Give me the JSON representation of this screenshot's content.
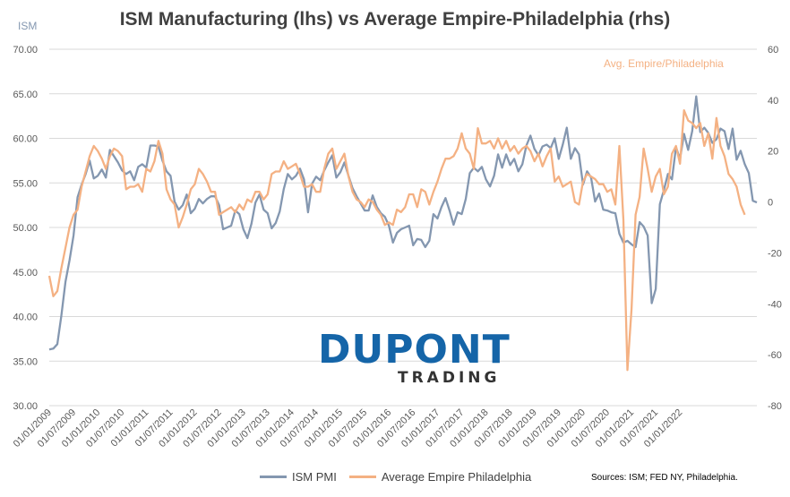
{
  "chart_data": {
    "type": "line",
    "title": "ISM Manufacturing (lhs) vs Average Empire-Philadelphia (rhs)",
    "left_axis_label": "ISM",
    "right_axis_label": "Avg. Empire/Philadelphia",
    "left_ylim": [
      30,
      70
    ],
    "right_ylim": [
      -80,
      60
    ],
    "left_ticks": [
      "30.00",
      "35.00",
      "40.00",
      "45.00",
      "50.00",
      "55.00",
      "60.00",
      "65.00",
      "70.00"
    ],
    "right_ticks": [
      "-80",
      "-60",
      "-40",
      "-20",
      "0",
      "20",
      "40",
      "60"
    ],
    "x_ticks": [
      "01/01/2009",
      "01/07/2009",
      "01/01/2010",
      "01/07/2010",
      "01/01/2011",
      "01/07/2011",
      "01/01/2012",
      "01/07/2012",
      "01/01/2013",
      "01/07/2013",
      "01/01/2014",
      "01/07/2014",
      "01/01/2015",
      "01/07/2015",
      "01/01/2016",
      "01/07/2016",
      "01/01/2017",
      "01/07/2017",
      "01/01/2018",
      "01/07/2018",
      "01/01/2019",
      "01/07/2019",
      "01/01/2020",
      "01/07/2020",
      "01/01/2021",
      "01/07/2021",
      "01/01/2022"
    ],
    "x_start": "2009-01",
    "x_end": "2022-08",
    "series": [
      {
        "name": "ISM PMI",
        "axis": "left",
        "color": "#8497b0",
        "values": [
          36.3,
          36.4,
          36.9,
          40.1,
          43.9,
          46.3,
          49.1,
          53.4,
          54.8,
          56.0,
          57.5,
          55.5,
          55.8,
          56.5,
          55.6,
          58.7,
          58.0,
          57.3,
          56.4,
          56.0,
          56.3,
          55.3,
          56.8,
          57.1,
          56.7,
          59.2,
          59.2,
          59.1,
          57.5,
          56.3,
          55.8,
          52.9,
          52.0,
          52.5,
          53.7,
          51.6,
          52.1,
          53.2,
          52.7,
          53.2,
          53.5,
          53.5,
          52.5,
          49.8,
          50.0,
          50.2,
          51.9,
          51.5,
          49.8,
          48.8,
          50.4,
          52.8,
          53.7,
          52.0,
          51.6,
          49.9,
          50.5,
          51.8,
          54.3,
          56.0,
          55.4,
          55.8,
          56.6,
          55.4,
          51.7,
          54.9,
          55.7,
          55.3,
          56.4,
          57.3,
          58.1,
          55.6,
          56.2,
          57.3,
          55.8,
          54.4,
          53.5,
          52.7,
          51.9,
          51.9,
          53.6,
          52.3,
          51.6,
          51.2,
          50.2,
          48.3,
          49.4,
          49.8,
          50.0,
          50.2,
          48.0,
          48.7,
          48.6,
          47.8,
          48.5,
          51.5,
          51.0,
          52.3,
          53.3,
          51.9,
          50.3,
          51.7,
          51.5,
          53.2,
          56.1,
          56.7,
          56.3,
          56.8,
          55.4,
          54.6,
          55.8,
          58.2,
          56.7,
          58.2,
          57.0,
          57.7,
          56.3,
          57.1,
          59.2,
          60.3,
          58.8,
          58.1,
          59.1,
          59.3,
          58.9,
          60.0,
          57.7,
          59.3,
          61.2,
          57.7,
          58.9,
          58.2,
          54.8,
          56.3,
          55.6,
          52.9,
          53.8,
          52.0,
          51.9,
          51.7,
          51.6,
          49.3,
          48.3,
          48.5,
          48.1,
          47.8,
          50.6,
          50.1,
          49.1,
          41.5,
          43.1,
          52.6,
          54.2,
          56.0,
          55.4,
          59.0,
          57.7,
          60.5,
          58.7,
          60.8,
          64.7,
          60.7,
          61.2,
          60.6,
          59.5,
          59.9,
          61.1,
          60.8,
          58.8,
          61.1,
          57.6,
          58.6,
          57.1,
          56.1,
          53.0,
          52.8
        ]
      },
      {
        "name": "Average Empire Philadelphia",
        "axis": "right",
        "color": "#f4b183",
        "values": [
          -29,
          -37,
          -35,
          -26,
          -18,
          -10,
          -5,
          -3,
          6,
          12,
          18,
          22,
          20,
          17,
          13,
          18,
          21,
          20,
          18,
          5,
          6,
          6,
          7,
          4,
          13,
          12,
          16,
          24,
          19,
          5,
          1,
          -1,
          -10,
          -6,
          -1,
          5,
          7,
          13,
          11,
          8,
          4,
          4,
          -5,
          -4,
          -3,
          -2,
          -4,
          -1,
          -3,
          1,
          0,
          4,
          4,
          1,
          3,
          11,
          12,
          12,
          16,
          13,
          14,
          15,
          11,
          6,
          6,
          7,
          4,
          4,
          13,
          19,
          21,
          13,
          16,
          19,
          10,
          4,
          1,
          0,
          -2,
          1,
          0,
          -3,
          -5,
          -9,
          -8,
          -9,
          -3,
          -4,
          -2,
          3,
          3,
          -2,
          5,
          4,
          -1,
          4,
          8,
          13,
          17,
          17,
          18,
          21,
          27,
          21,
          19,
          13,
          29,
          23,
          23,
          24,
          21,
          25,
          21,
          24,
          20,
          22,
          19,
          21,
          22,
          20,
          16,
          19,
          14,
          18,
          21,
          8,
          10,
          6,
          7,
          8,
          0,
          -1,
          8,
          11,
          10,
          9,
          7,
          7,
          4,
          5,
          -1,
          22,
          -7,
          -66,
          -42,
          -5,
          2,
          21,
          13,
          4,
          10,
          13,
          3,
          6,
          19,
          22,
          15,
          36,
          32,
          31,
          29,
          31,
          22,
          27,
          17,
          33,
          22,
          18,
          11,
          9,
          6,
          -1,
          -5
        ]
      }
    ]
  },
  "legend": {
    "ism": "ISM PMI",
    "empire": "Average Empire Philadelphia"
  },
  "source": "Sources: ISM; FED NY, Philadelphia.",
  "logo": {
    "main": "DUPONT",
    "sub": "TRADING"
  }
}
